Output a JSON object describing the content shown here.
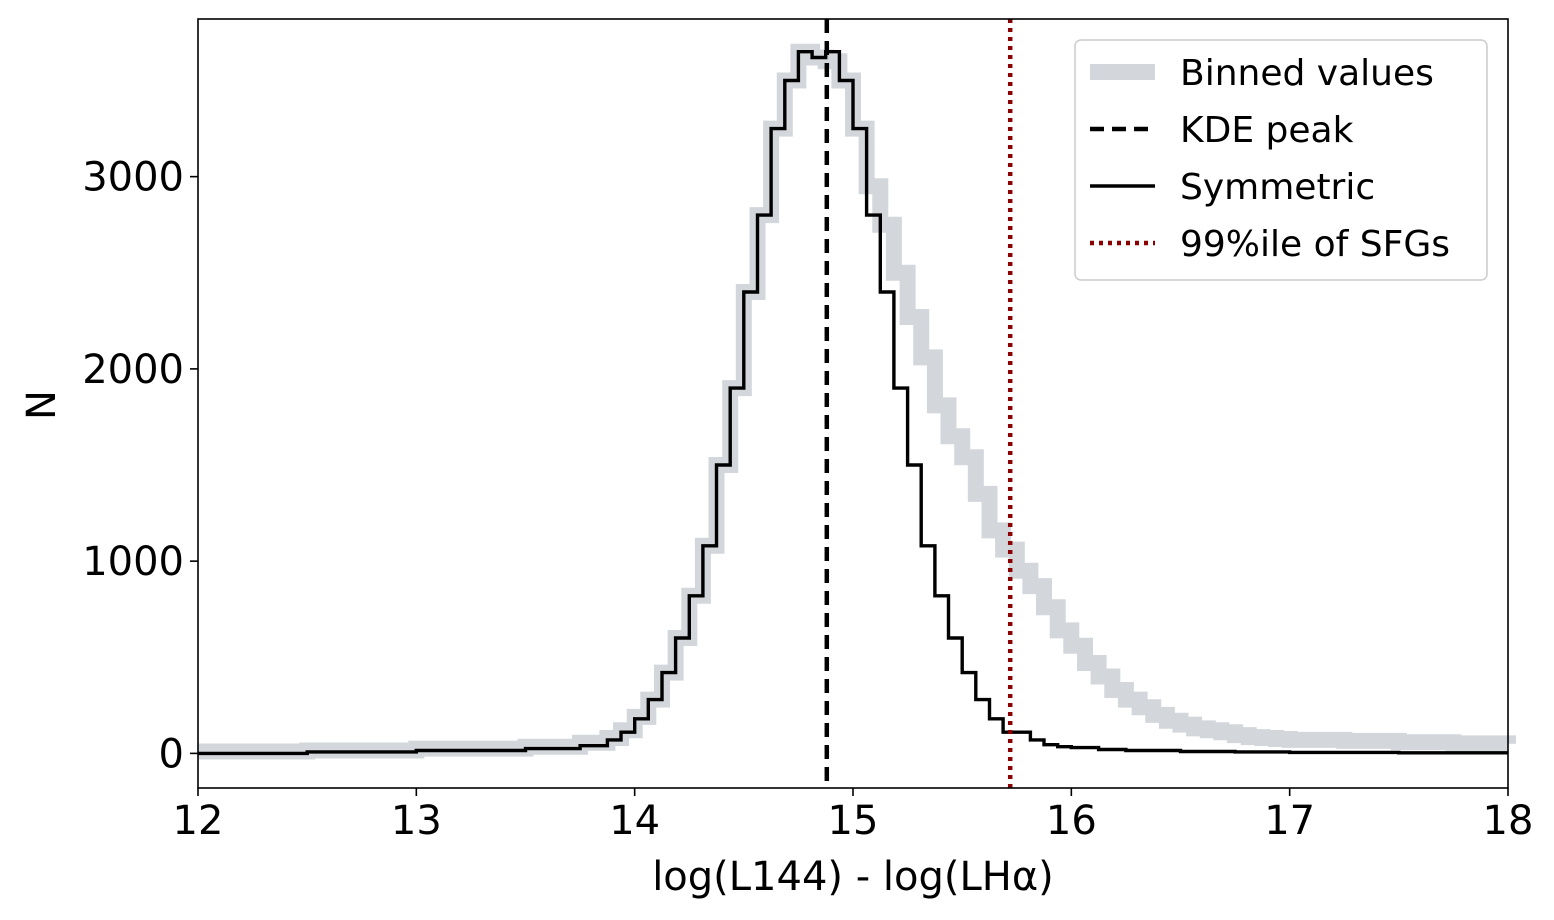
{
  "chart_data": {
    "type": "histogram",
    "title": "",
    "xlabel": "log(L144) - log(LHα)",
    "ylabel": "N",
    "xlim": [
      12,
      18
    ],
    "ylim": [
      -180,
      3820
    ],
    "grid": false,
    "legend_position": "top-right",
    "x_ticks": [
      12,
      13,
      14,
      15,
      16,
      17,
      18
    ],
    "x_tick_labels": [
      "12",
      "13",
      "14",
      "15",
      "16",
      "17",
      "18"
    ],
    "y_ticks": [
      0,
      1000,
      2000,
      3000
    ],
    "y_tick_labels": [
      "0",
      "1000",
      "2000",
      "3000"
    ],
    "bin_edges": [
      14.0,
      14.0625,
      14.125,
      14.1875,
      14.25,
      14.3125,
      14.375,
      14.4375,
      14.5,
      14.5625,
      14.625,
      14.6875,
      14.75,
      14.8125,
      14.875,
      14.9375,
      15.0,
      15.0625,
      15.125,
      15.1875,
      15.25,
      15.3125,
      15.375,
      15.4375,
      15.5,
      15.5625,
      15.625,
      15.6875,
      15.75,
      15.8125,
      15.875,
      15.9375,
      16.0,
      16.0625,
      16.125,
      16.1875,
      16.25,
      16.3125,
      16.375,
      16.4375,
      16.5,
      16.5625,
      16.625,
      16.6875,
      16.75,
      16.8125,
      16.875,
      16.9375,
      17.0
    ],
    "series": [
      {
        "name": "Binned values",
        "style": "thick-light-step",
        "color": "#d3d7db",
        "steps": [
          [
            12.0,
            10
          ],
          [
            12.5,
            15
          ],
          [
            13.0,
            25
          ],
          [
            13.5,
            35
          ],
          [
            13.75,
            55
          ],
          [
            13.875,
            80
          ],
          [
            13.9375,
            120
          ],
          [
            14.0,
            190
          ],
          [
            14.0625,
            280
          ],
          [
            14.125,
            420
          ],
          [
            14.1875,
            600
          ],
          [
            14.25,
            820
          ],
          [
            14.3125,
            1080
          ],
          [
            14.375,
            1500
          ],
          [
            14.4375,
            1900
          ],
          [
            14.5,
            2400
          ],
          [
            14.5625,
            2800
          ],
          [
            14.625,
            3250
          ],
          [
            14.6875,
            3500
          ],
          [
            14.75,
            3650
          ],
          [
            14.8125,
            3620
          ],
          [
            14.875,
            3600
          ],
          [
            14.9375,
            3500
          ],
          [
            15.0,
            3250
          ],
          [
            15.0625,
            2950
          ],
          [
            15.125,
            2750
          ],
          [
            15.1875,
            2500
          ],
          [
            15.25,
            2270
          ],
          [
            15.3125,
            2060
          ],
          [
            15.375,
            1810
          ],
          [
            15.4375,
            1650
          ],
          [
            15.5,
            1540
          ],
          [
            15.5625,
            1350
          ],
          [
            15.625,
            1160
          ],
          [
            15.6875,
            1060
          ],
          [
            15.75,
            950
          ],
          [
            15.8125,
            870
          ],
          [
            15.875,
            760
          ],
          [
            15.9375,
            640
          ],
          [
            16.0,
            560
          ],
          [
            16.0625,
            470
          ],
          [
            16.125,
            400
          ],
          [
            16.1875,
            330
          ],
          [
            16.25,
            280
          ],
          [
            16.3125,
            240
          ],
          [
            16.375,
            200
          ],
          [
            16.4375,
            170
          ],
          [
            16.5,
            150
          ],
          [
            16.5625,
            130
          ],
          [
            16.625,
            120
          ],
          [
            16.6875,
            110
          ],
          [
            16.75,
            95
          ],
          [
            16.8125,
            85
          ],
          [
            16.875,
            80
          ],
          [
            16.9375,
            75
          ],
          [
            17.0,
            70
          ],
          [
            17.25,
            65
          ],
          [
            17.5,
            58
          ],
          [
            17.75,
            52
          ],
          [
            18.0,
            50
          ]
        ]
      },
      {
        "name": "Symmetric",
        "style": "solid-step",
        "color": "#000000",
        "steps": [
          [
            12.0,
            0
          ],
          [
            12.5,
            8
          ],
          [
            13.0,
            15
          ],
          [
            13.5,
            25
          ],
          [
            13.75,
            40
          ],
          [
            13.875,
            70
          ],
          [
            13.9375,
            110
          ],
          [
            14.0,
            180
          ],
          [
            14.0625,
            280
          ],
          [
            14.125,
            420
          ],
          [
            14.1875,
            600
          ],
          [
            14.25,
            820
          ],
          [
            14.3125,
            1080
          ],
          [
            14.375,
            1500
          ],
          [
            14.4375,
            1900
          ],
          [
            14.5,
            2400
          ],
          [
            14.5625,
            2800
          ],
          [
            14.625,
            3250
          ],
          [
            14.6875,
            3500
          ],
          [
            14.75,
            3650
          ],
          [
            14.8125,
            3620
          ],
          [
            14.875,
            3650
          ],
          [
            14.9375,
            3500
          ],
          [
            15.0,
            3250
          ],
          [
            15.0625,
            2800
          ],
          [
            15.125,
            2400
          ],
          [
            15.1875,
            1900
          ],
          [
            15.25,
            1500
          ],
          [
            15.3125,
            1080
          ],
          [
            15.375,
            820
          ],
          [
            15.4375,
            600
          ],
          [
            15.5,
            420
          ],
          [
            15.5625,
            280
          ],
          [
            15.625,
            180
          ],
          [
            15.6875,
            110
          ],
          [
            15.75,
            110
          ],
          [
            15.8125,
            70
          ],
          [
            15.875,
            45
          ],
          [
            15.9375,
            35
          ],
          [
            16.0,
            30
          ],
          [
            16.125,
            20
          ],
          [
            16.25,
            15
          ],
          [
            16.5,
            10
          ],
          [
            16.75,
            8
          ],
          [
            17.0,
            5
          ],
          [
            17.5,
            3
          ],
          [
            18.0,
            3
          ]
        ]
      }
    ],
    "vertical_lines": [
      {
        "name": "KDE peak",
        "x": 14.88,
        "style": "dashed",
        "color": "#000000"
      },
      {
        "name": "99%ile of SFGs",
        "x": 15.72,
        "style": "dotted",
        "color": "#8b0000"
      }
    ],
    "legend": [
      {
        "label": "Binned values",
        "style": "thick-light",
        "color": "#d3d7db"
      },
      {
        "label": "KDE peak",
        "style": "dashed",
        "color": "#000000"
      },
      {
        "label": "Symmetric",
        "style": "solid",
        "color": "#000000"
      },
      {
        "label": "99%ile of SFGs",
        "style": "dotted",
        "color": "#8b0000"
      }
    ]
  }
}
